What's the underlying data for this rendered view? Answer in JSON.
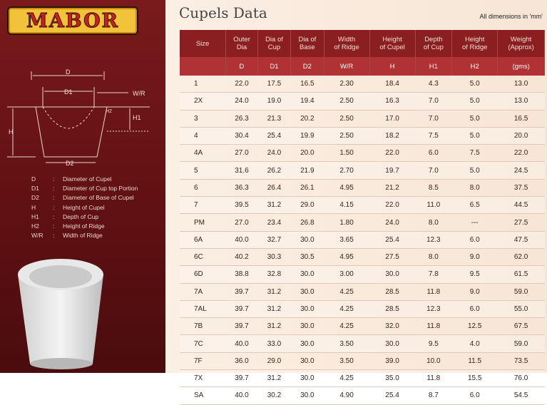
{
  "logo": "MABOR",
  "title": "Cupels Data",
  "dims_note": "All dimensions in 'mm'",
  "diagram_labels": {
    "D": "D",
    "D1": "D1",
    "WR": "W/R",
    "H2": "H2",
    "H1": "H1",
    "H": "H",
    "D2": "D2"
  },
  "legend": [
    {
      "k": "D",
      "v": "Diameter of Cupel"
    },
    {
      "k": "D1",
      "v": "Diameter of Cup top Portion"
    },
    {
      "k": "D2",
      "v": "Diameter of Base of Cupel"
    },
    {
      "k": "H",
      "v": "Height of Cupel"
    },
    {
      "k": "H1",
      "v": "Depth of Cup"
    },
    {
      "k": "H2",
      "v": "Height of Ridge"
    },
    {
      "k": "W/R",
      "v": "Width of Ridge"
    }
  ],
  "headers": [
    [
      "Size"
    ],
    [
      "Outer",
      "Dia"
    ],
    [
      "Dia of",
      "Cup"
    ],
    [
      "Dia of",
      "Base"
    ],
    [
      "Width",
      "of Ridge"
    ],
    [
      "Height",
      "of Cupel"
    ],
    [
      "Depth",
      "of Cup"
    ],
    [
      "Height",
      "of Ridge"
    ],
    [
      "Weight",
      "(Approx)"
    ]
  ],
  "subheaders": [
    "",
    "D",
    "D1",
    "D2",
    "W/R",
    "H",
    "H1",
    "H2",
    "(gms)"
  ],
  "rows": [
    [
      "1",
      "22.0",
      "17.5",
      "16.5",
      "2.30",
      "18.4",
      "4.3",
      "5.0",
      "13.0"
    ],
    [
      "2X",
      "24.0",
      "19.0",
      "19.4",
      "2.50",
      "16.3",
      "7.0",
      "5.0",
      "13.0"
    ],
    [
      "3",
      "26.3",
      "21.3",
      "20.2",
      "2.50",
      "17.0",
      "7.0",
      "5.0",
      "16.5"
    ],
    [
      "4",
      "30.4",
      "25.4",
      "19.9",
      "2.50",
      "18.2",
      "7.5",
      "5.0",
      "20.0"
    ],
    [
      "4A",
      "27.0",
      "24.0",
      "20.0",
      "1.50",
      "22.0",
      "6.0",
      "7.5",
      "22.0"
    ],
    [
      "5",
      "31.6",
      "26.2",
      "21.9",
      "2.70",
      "19.7",
      "7.0",
      "5.0",
      "24.5"
    ],
    [
      "6",
      "36.3",
      "26.4",
      "26.1",
      "4.95",
      "21.2",
      "8.5",
      "8.0",
      "37.5"
    ],
    [
      "7",
      "39.5",
      "31.2",
      "29.0",
      "4.15",
      "22.0",
      "11.0",
      "6.5",
      "44.5"
    ],
    [
      "PM",
      "27.0",
      "23.4",
      "26.8",
      "1.80",
      "24.0",
      "8.0",
      "---",
      "27.5"
    ],
    [
      "6A",
      "40.0",
      "32.7",
      "30.0",
      "3.65",
      "25.4",
      "12.3",
      "6.0",
      "47.5"
    ],
    [
      "6C",
      "40.2",
      "30.3",
      "30.5",
      "4.95",
      "27.5",
      "8.0",
      "9.0",
      "62.0"
    ],
    [
      "6D",
      "38.8",
      "32.8",
      "30.0",
      "3.00",
      "30.0",
      "7.8",
      "9.5",
      "61.5"
    ],
    [
      "7A",
      "39.7",
      "31.2",
      "30.0",
      "4.25",
      "28.5",
      "11.8",
      "9.0",
      "59.0"
    ],
    [
      "7AL",
      "39.7",
      "31.2",
      "30.0",
      "4.25",
      "28.5",
      "12.3",
      "6.0",
      "55.0"
    ],
    [
      "7B",
      "39.7",
      "31.2",
      "30.0",
      "4.25",
      "32.0",
      "11.8",
      "12.5",
      "67.5"
    ],
    [
      "7C",
      "40.0",
      "33.0",
      "30.0",
      "3.50",
      "30.0",
      "9.5",
      "4.0",
      "59.0"
    ],
    [
      "7F",
      "36.0",
      "29.0",
      "30.0",
      "3.50",
      "39.0",
      "10.0",
      "11.5",
      "73.5"
    ],
    [
      "7X",
      "39.7",
      "31.2",
      "30.0",
      "4.25",
      "35.0",
      "11.8",
      "15.5",
      "76.0"
    ],
    [
      "SA",
      "40.0",
      "30.2",
      "30.0",
      "4.90",
      "25.4",
      "8.7",
      "6.0",
      "54.5"
    ]
  ]
}
